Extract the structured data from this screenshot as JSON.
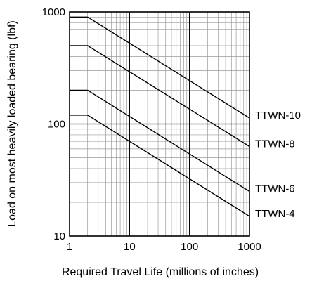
{
  "chart_data": {
    "type": "line",
    "title": "",
    "xlabel": "Required Travel Life (millions of inches)",
    "ylabel": "Load on most heavily loaded bearing (lbf)",
    "x_scale": "log",
    "y_scale": "log",
    "xlim": [
      1,
      1000
    ],
    "ylim": [
      10,
      1000
    ],
    "x_ticks": [
      "1",
      "10",
      "100",
      "1000"
    ],
    "y_ticks": [
      "10",
      "100",
      "1000"
    ],
    "grid": true,
    "series": [
      {
        "name": "TTWN-10",
        "x": [
          1,
          2,
          1000
        ],
        "y": [
          900,
          900,
          113
        ]
      },
      {
        "name": "TTWN-8",
        "x": [
          1,
          2,
          1000
        ],
        "y": [
          500,
          500,
          63
        ]
      },
      {
        "name": "TTWN-6",
        "x": [
          1,
          2,
          1000
        ],
        "y": [
          200,
          200,
          25
        ]
      },
      {
        "name": "TTWN-4",
        "x": [
          1,
          2,
          1000
        ],
        "y": [
          120,
          120,
          15
        ]
      }
    ],
    "colors": {
      "line": "#000000",
      "grid": "#9a9a9a",
      "axis": "#000000"
    }
  }
}
